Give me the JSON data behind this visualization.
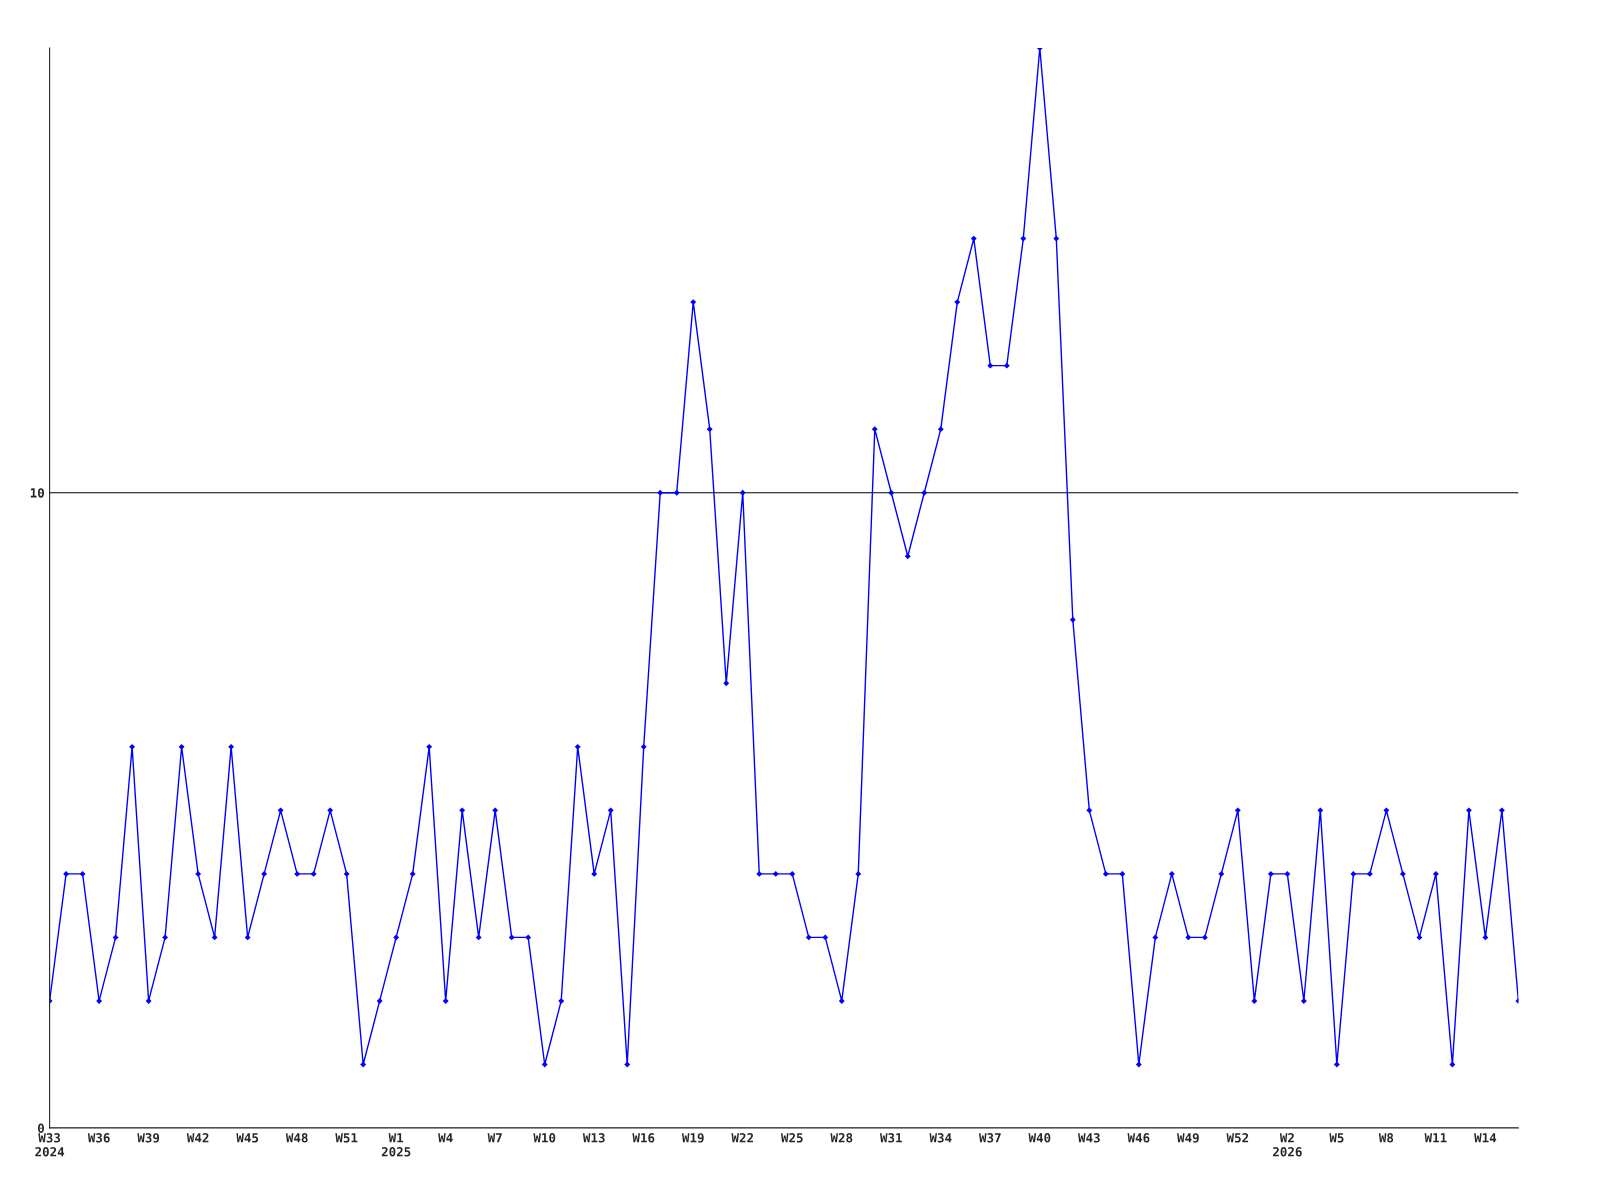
{
  "chart_data": {
    "type": "line",
    "categories": [
      "W33\n2024",
      null,
      null,
      "W36",
      null,
      null,
      "W39",
      null,
      null,
      "W42",
      null,
      null,
      "W45",
      null,
      null,
      "W48",
      null,
      null,
      "W51",
      null,
      null,
      "W1\n2025",
      null,
      null,
      "W4",
      null,
      null,
      "W7",
      null,
      null,
      "W10",
      null,
      null,
      "W13",
      null,
      null,
      "W16",
      null,
      null,
      "W19",
      null,
      null,
      "W22",
      null,
      null,
      "W25",
      null,
      null,
      "W28",
      null,
      null,
      "W31",
      null,
      null,
      "W34",
      null,
      null,
      "W37",
      null,
      null,
      "W40",
      null,
      null,
      "W43",
      null,
      null,
      "W46",
      null,
      null,
      "W49",
      null,
      null,
      "W52",
      null,
      null,
      "W2\n2026",
      null,
      null,
      "W5",
      null,
      null,
      "W8",
      null,
      null,
      "W11",
      null,
      null,
      "W14",
      null,
      null
    ],
    "series": [
      {
        "color": "#0000ff",
        "values": [
          2,
          4,
          4,
          2,
          3,
          6,
          2,
          3,
          6,
          4,
          3,
          6,
          3,
          4,
          5,
          4,
          4,
          5,
          4,
          1,
          2,
          3,
          4,
          6,
          2,
          5,
          3,
          5,
          3,
          3,
          1,
          2,
          6,
          4,
          5,
          1,
          6,
          10,
          10,
          13,
          11,
          7,
          10,
          4,
          4,
          4,
          3,
          3,
          2,
          4,
          11,
          10,
          9,
          10,
          11,
          13,
          14,
          12,
          12,
          14,
          17,
          14,
          8,
          5,
          4,
          4,
          1,
          3,
          4,
          3,
          3,
          4,
          5,
          2,
          4,
          4,
          2,
          5,
          1,
          4,
          4,
          5,
          4,
          3,
          4,
          1,
          5,
          3,
          5,
          2
        ]
      }
    ],
    "ylim": [
      0,
      17
    ],
    "yticks": [
      0,
      10
    ],
    "grid": "y",
    "marker": "diamond",
    "line_style": "solid"
  }
}
